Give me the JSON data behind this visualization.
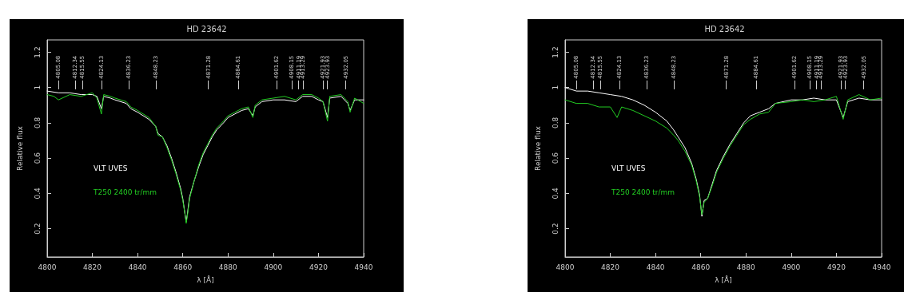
{
  "chart_data": [
    {
      "type": "line",
      "title": "HD 23642",
      "xlabel": "λ [Å]",
      "ylabel": "Relative flux",
      "xlim": [
        4800,
        4940
      ],
      "xticks": [
        4800,
        4820,
        4840,
        4860,
        4880,
        4900,
        4920,
        4940
      ],
      "ylim": [
        0.04,
        1.27
      ],
      "yticks": [
        0.2,
        0.4,
        0.6,
        0.8,
        1,
        1.2
      ],
      "grid": false,
      "legend": "left",
      "marker": "none",
      "line_style": "solid",
      "series": [
        {
          "name": "VLT UVES",
          "color": "#ffffff",
          "x": [
            4800,
            4805,
            4810,
            4815,
            4820,
            4822,
            4824,
            4825,
            4828,
            4830,
            4835,
            4837,
            4840,
            4845,
            4848,
            4849,
            4851,
            4853,
            4855,
            4857,
            4859,
            4860,
            4861,
            4861.5,
            4862,
            4863,
            4865,
            4867,
            4869,
            4871,
            4873,
            4875,
            4878,
            4880,
            4883,
            4886,
            4889,
            4891,
            4892,
            4895,
            4900,
            4905,
            4910,
            4913,
            4917,
            4920,
            4922,
            4924,
            4925,
            4930,
            4933,
            4934,
            4936,
            4940
          ],
          "values": [
            0.98,
            0.97,
            0.97,
            0.96,
            0.96,
            0.95,
            0.88,
            0.95,
            0.94,
            0.93,
            0.91,
            0.88,
            0.86,
            0.82,
            0.78,
            0.74,
            0.72,
            0.67,
            0.6,
            0.52,
            0.43,
            0.37,
            0.28,
            0.24,
            0.28,
            0.38,
            0.47,
            0.55,
            0.62,
            0.67,
            0.72,
            0.76,
            0.8,
            0.83,
            0.85,
            0.87,
            0.88,
            0.84,
            0.89,
            0.92,
            0.93,
            0.93,
            0.92,
            0.95,
            0.95,
            0.93,
            0.92,
            0.83,
            0.94,
            0.95,
            0.91,
            0.87,
            0.93,
            0.93
          ]
        },
        {
          "name": "T250 2400 tr/mm",
          "color": "#22cc22",
          "x": [
            4800,
            4803,
            4805,
            4810,
            4815,
            4820,
            4822,
            4824,
            4825,
            4828,
            4830,
            4835,
            4837,
            4840,
            4845,
            4848,
            4849,
            4851,
            4853,
            4855,
            4857,
            4859,
            4860,
            4861,
            4861.5,
            4862,
            4863,
            4865,
            4867,
            4869,
            4871,
            4873,
            4875,
            4878,
            4880,
            4883,
            4886,
            4889,
            4891,
            4892,
            4895,
            4900,
            4905,
            4910,
            4913,
            4917,
            4920,
            4922,
            4924,
            4925,
            4930,
            4933,
            4934,
            4936,
            4940
          ],
          "values": [
            0.96,
            0.95,
            0.93,
            0.96,
            0.95,
            0.97,
            0.94,
            0.85,
            0.96,
            0.95,
            0.94,
            0.92,
            0.89,
            0.87,
            0.83,
            0.78,
            0.73,
            0.72,
            0.66,
            0.59,
            0.51,
            0.42,
            0.36,
            0.28,
            0.23,
            0.27,
            0.37,
            0.47,
            0.56,
            0.63,
            0.68,
            0.73,
            0.77,
            0.81,
            0.84,
            0.86,
            0.88,
            0.89,
            0.83,
            0.9,
            0.93,
            0.94,
            0.95,
            0.93,
            0.96,
            0.96,
            0.94,
            0.92,
            0.81,
            0.95,
            0.96,
            0.92,
            0.86,
            0.94,
            0.91
          ]
        }
      ],
      "ref_lines": [
        {
          "axis": "x",
          "value": 4805.08,
          "label": "4805.08"
        },
        {
          "axis": "x",
          "value": 4812.34,
          "label": "4812.34"
        },
        {
          "axis": "x",
          "value": 4815.55,
          "label": "4815.55"
        },
        {
          "axis": "x",
          "value": 4824.13,
          "label": "4824.13"
        },
        {
          "axis": "x",
          "value": 4836.23,
          "label": "4836.23"
        },
        {
          "axis": "x",
          "value": 4848.23,
          "label": "4848.23"
        },
        {
          "axis": "x",
          "value": 4871.28,
          "label": "4871.28"
        },
        {
          "axis": "x",
          "value": 4884.61,
          "label": "4884.61"
        },
        {
          "axis": "x",
          "value": 4901.62,
          "label": "4901.62"
        },
        {
          "axis": "x",
          "value": 4908.15,
          "label": "4908.15"
        },
        {
          "axis": "x",
          "value": 4911.19,
          "label": "4911.19"
        },
        {
          "axis": "x",
          "value": 4913.29,
          "label": "4913.29"
        },
        {
          "axis": "x",
          "value": 4921.93,
          "label": "4921.93"
        },
        {
          "axis": "x",
          "value": 4923.93,
          "label": "4923.93"
        },
        {
          "axis": "x",
          "value": 4932.05,
          "label": "4932.05"
        }
      ]
    },
    {
      "type": "line",
      "title": "HD 23642",
      "xlabel": "λ [Å]",
      "ylabel": "Relative flux",
      "xlim": [
        4800,
        4940
      ],
      "xticks": [
        4800,
        4820,
        4840,
        4860,
        4880,
        4900,
        4920,
        4940
      ],
      "ylim": [
        0.04,
        1.27
      ],
      "yticks": [
        0.2,
        0.4,
        0.6,
        0.8,
        1,
        1.2
      ],
      "grid": false,
      "legend": "left",
      "marker": "none",
      "line_style": "solid",
      "series": [
        {
          "name": "VLT UVES",
          "color": "#ffffff",
          "x": [
            4800,
            4805,
            4810,
            4815,
            4820,
            4825,
            4830,
            4835,
            4840,
            4845,
            4848,
            4850,
            4853,
            4856,
            4858,
            4859.5,
            4860.5,
            4861.5,
            4863,
            4865,
            4867,
            4870,
            4873,
            4876,
            4879,
            4882,
            4886,
            4890,
            4893,
            4900,
            4905,
            4910,
            4915,
            4920,
            4923,
            4925,
            4930,
            4935,
            4940
          ],
          "values": [
            1.0,
            0.98,
            0.98,
            0.97,
            0.96,
            0.95,
            0.93,
            0.9,
            0.86,
            0.81,
            0.76,
            0.72,
            0.66,
            0.57,
            0.48,
            0.39,
            0.27,
            0.36,
            0.37,
            0.45,
            0.53,
            0.61,
            0.68,
            0.74,
            0.8,
            0.84,
            0.86,
            0.88,
            0.91,
            0.93,
            0.93,
            0.94,
            0.93,
            0.93,
            0.83,
            0.92,
            0.94,
            0.93,
            0.93
          ]
        },
        {
          "name": "T250 2400 tr/mm",
          "color": "#22cc22",
          "x": [
            4800,
            4805,
            4810,
            4815,
            4820,
            4823,
            4825,
            4830,
            4835,
            4840,
            4845,
            4848,
            4850,
            4853,
            4856,
            4858,
            4859.5,
            4860.5,
            4861.5,
            4863,
            4865,
            4867,
            4870,
            4873,
            4876,
            4879,
            4882,
            4886,
            4890,
            4893,
            4900,
            4905,
            4910,
            4915,
            4920,
            4923,
            4925,
            4930,
            4935,
            4940
          ],
          "values": [
            0.93,
            0.91,
            0.91,
            0.89,
            0.89,
            0.83,
            0.89,
            0.87,
            0.84,
            0.81,
            0.77,
            0.73,
            0.7,
            0.64,
            0.56,
            0.47,
            0.38,
            0.28,
            0.35,
            0.37,
            0.44,
            0.52,
            0.6,
            0.67,
            0.73,
            0.79,
            0.82,
            0.85,
            0.86,
            0.91,
            0.92,
            0.93,
            0.92,
            0.93,
            0.95,
            0.82,
            0.93,
            0.96,
            0.93,
            0.94
          ]
        }
      ],
      "ref_lines": [
        {
          "axis": "x",
          "value": 4805.08,
          "label": "4805.08"
        },
        {
          "axis": "x",
          "value": 4812.34,
          "label": "4812.34"
        },
        {
          "axis": "x",
          "value": 4815.55,
          "label": "4815.55"
        },
        {
          "axis": "x",
          "value": 4824.13,
          "label": "4824.13"
        },
        {
          "axis": "x",
          "value": 4836.23,
          "label": "4836.23"
        },
        {
          "axis": "x",
          "value": 4848.23,
          "label": "4848.23"
        },
        {
          "axis": "x",
          "value": 4871.28,
          "label": "4871.28"
        },
        {
          "axis": "x",
          "value": 4884.61,
          "label": "4884.61"
        },
        {
          "axis": "x",
          "value": 4901.62,
          "label": "4901.62"
        },
        {
          "axis": "x",
          "value": 4908.15,
          "label": "4908.15"
        },
        {
          "axis": "x",
          "value": 4911.19,
          "label": "4911.19"
        },
        {
          "axis": "x",
          "value": 4913.29,
          "label": "4913.29"
        },
        {
          "axis": "x",
          "value": 4921.93,
          "label": "4921.93"
        },
        {
          "axis": "x",
          "value": 4923.93,
          "label": "4923.93"
        },
        {
          "axis": "x",
          "value": 4932.05,
          "label": "4932.05"
        }
      ]
    }
  ]
}
